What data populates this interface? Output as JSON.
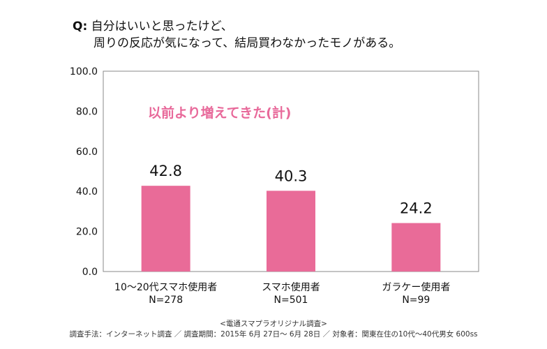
{
  "question": {
    "prefix": "Q:",
    "line1": "自分はいいと思ったけど、",
    "line2": "周りの反応が気になって、結局買わなかったモノがある。"
  },
  "chart_data": {
    "type": "bar",
    "title": "以前より増えてきた(計)",
    "categories": [
      "10～20代スマホ使用者",
      "スマホ使用者",
      "ガラケー使用者"
    ],
    "sample_sizes": [
      "N=278",
      "N=501",
      "N=99"
    ],
    "values": [
      42.8,
      40.3,
      24.2
    ],
    "value_labels": [
      "42.8",
      "40.3",
      "24.2"
    ],
    "ylim": [
      0,
      100
    ],
    "yticks": [
      0,
      20,
      40,
      60,
      80,
      100
    ],
    "ytick_labels": [
      "0.0",
      "20.0",
      "40.0",
      "60.0",
      "80.0",
      "100.0"
    ],
    "xlabel": "",
    "ylabel": "",
    "grid": false,
    "colors": {
      "bar": "#e96b98",
      "title": "#e8699a",
      "axis": "#888888"
    }
  },
  "footer": {
    "source": "<電通スマプラオリジナル調査>",
    "method": "調査手法：インターネット調査 ／ 調査期間：2015年 6月 27日～ 6月 28日 ／ 対象者：関東在住の10代～40代男女 600ss"
  }
}
